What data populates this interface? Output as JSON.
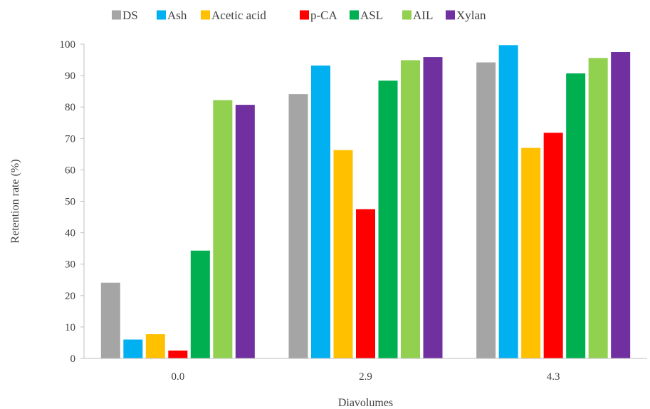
{
  "chart_data": {
    "type": "bar",
    "xlabel": "Diavolumes",
    "ylabel": "Retention rate (%)",
    "ylim": [
      0,
      100
    ],
    "yticks": [
      0,
      10,
      20,
      30,
      40,
      50,
      60,
      70,
      80,
      90,
      100
    ],
    "categories": [
      "0.0",
      "2.9",
      "4.3"
    ],
    "grid": false,
    "legend_position": "top",
    "series": [
      {
        "name": "DS",
        "color": "#a5a5a5",
        "values": [
          24.1,
          84.1,
          94.2
        ]
      },
      {
        "name": "Ash",
        "color": "#00b0f0",
        "values": [
          6.0,
          93.2,
          99.7
        ]
      },
      {
        "name": "Acetic acid",
        "color": "#ffc000",
        "values": [
          7.7,
          66.3,
          67.0
        ]
      },
      {
        "name": "p-CA",
        "color": "#ff0000",
        "values": [
          2.5,
          47.5,
          71.8
        ]
      },
      {
        "name": "ASL",
        "color": "#00b050",
        "values": [
          34.3,
          88.4,
          90.7
        ]
      },
      {
        "name": "AIL",
        "color": "#92d050",
        "values": [
          82.2,
          94.9,
          95.6
        ]
      },
      {
        "name": "Xylan",
        "color": "#7030a0",
        "values": [
          80.7,
          95.9,
          97.5
        ]
      }
    ]
  }
}
